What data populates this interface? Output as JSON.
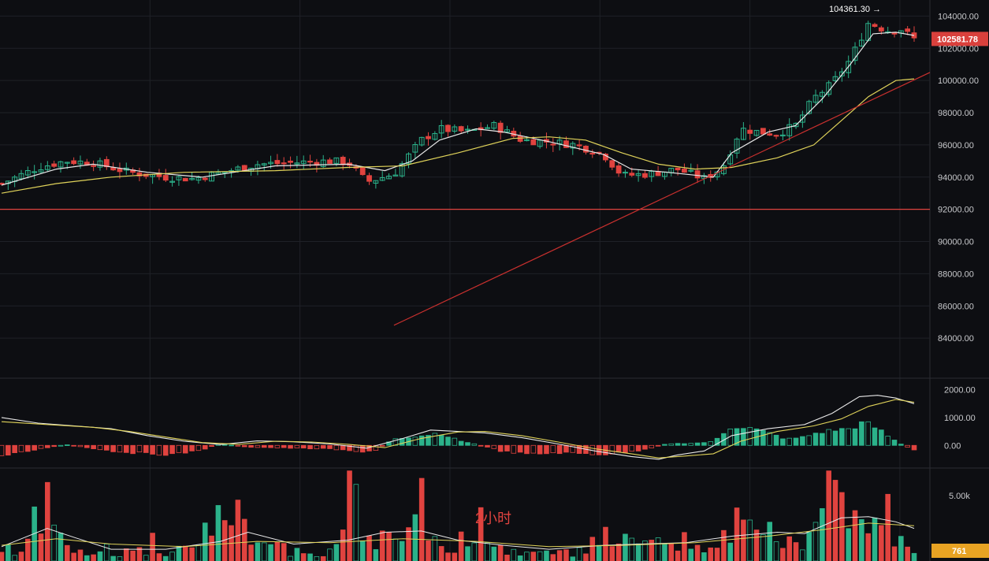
{
  "chart_data": [
    {
      "type": "candlestick",
      "panel": "price",
      "ylim": [
        82000,
        105000
      ],
      "y_ticks": [
        "104000.00",
        "102000.00",
        "100000.00",
        "98000.00",
        "96000.00",
        "94000.00",
        "92000.00",
        "90000.00",
        "88000.00",
        "86000.00",
        "84000.00"
      ],
      "high_annotation": "104361.30 →",
      "last_price_label": "102581.78",
      "horizontal_line_value": 92000,
      "trendline": {
        "from": [
          0.43,
          84800
        ],
        "to": [
          1.0,
          100500
        ]
      },
      "candle_count": 140,
      "close_path": [
        [
          0.0,
          93600
        ],
        [
          0.04,
          94600
        ],
        [
          0.07,
          95000
        ],
        [
          0.1,
          94900
        ],
        [
          0.14,
          94300
        ],
        [
          0.18,
          94000
        ],
        [
          0.21,
          93900
        ],
        [
          0.25,
          94400
        ],
        [
          0.28,
          94800
        ],
        [
          0.32,
          94900
        ],
        [
          0.36,
          95000
        ],
        [
          0.38,
          94900
        ],
        [
          0.4,
          93700
        ],
        [
          0.43,
          94200
        ],
        [
          0.46,
          96300
        ],
        [
          0.48,
          97000
        ],
        [
          0.51,
          96800
        ],
        [
          0.54,
          97200
        ],
        [
          0.57,
          96300
        ],
        [
          0.6,
          96200
        ],
        [
          0.63,
          96000
        ],
        [
          0.66,
          95400
        ],
        [
          0.68,
          94100
        ],
        [
          0.71,
          94200
        ],
        [
          0.74,
          94500
        ],
        [
          0.77,
          93900
        ],
        [
          0.79,
          94600
        ],
        [
          0.81,
          97000
        ],
        [
          0.83,
          96800
        ],
        [
          0.85,
          96700
        ],
        [
          0.87,
          97200
        ],
        [
          0.89,
          98900
        ],
        [
          0.91,
          99800
        ],
        [
          0.93,
          101300
        ],
        [
          0.95,
          103600
        ],
        [
          0.97,
          103100
        ],
        [
          0.985,
          103200
        ],
        [
          1.0,
          102580
        ]
      ],
      "series": [
        {
          "name": "",
          "color": "#e8e8e8",
          "path": [
            [
              0.0,
              93500
            ],
            [
              0.06,
              94500
            ],
            [
              0.1,
              94800
            ],
            [
              0.16,
              94300
            ],
            [
              0.22,
              94000
            ],
            [
              0.3,
              94700
            ],
            [
              0.38,
              94800
            ],
            [
              0.42,
              94400
            ],
            [
              0.45,
              95000
            ],
            [
              0.48,
              96300
            ],
            [
              0.52,
              97000
            ],
            [
              0.55,
              96800
            ],
            [
              0.6,
              96200
            ],
            [
              0.66,
              95400
            ],
            [
              0.69,
              94500
            ],
            [
              0.73,
              94300
            ],
            [
              0.78,
              94000
            ],
            [
              0.8,
              95500
            ],
            [
              0.84,
              96800
            ],
            [
              0.87,
              97200
            ],
            [
              0.9,
              98900
            ],
            [
              0.93,
              101000
            ],
            [
              0.955,
              102900
            ],
            [
              0.98,
              103000
            ],
            [
              1.0,
              102800
            ]
          ]
        },
        {
          "name": "",
          "color": "#e0d35a",
          "path": [
            [
              0.0,
              93000
            ],
            [
              0.06,
              93600
            ],
            [
              0.12,
              94000
            ],
            [
              0.2,
              94300
            ],
            [
              0.3,
              94400
            ],
            [
              0.38,
              94600
            ],
            [
              0.44,
              94700
            ],
            [
              0.5,
              95500
            ],
            [
              0.56,
              96400
            ],
            [
              0.6,
              96500
            ],
            [
              0.64,
              96300
            ],
            [
              0.68,
              95500
            ],
            [
              0.72,
              94800
            ],
            [
              0.76,
              94500
            ],
            [
              0.8,
              94600
            ],
            [
              0.85,
              95200
            ],
            [
              0.89,
              96000
            ],
            [
              0.92,
              97500
            ],
            [
              0.95,
              99000
            ],
            [
              0.98,
              100000
            ],
            [
              1.0,
              100100
            ]
          ]
        }
      ]
    },
    {
      "type": "macd",
      "panel": "macd",
      "ylim": [
        -700,
        2300
      ],
      "y_ticks": [
        "2000.00",
        "1000.00",
        "0.00"
      ],
      "histogram_path": [
        [
          0.0,
          -400
        ],
        [
          0.03,
          -200
        ],
        [
          0.05,
          -80
        ],
        [
          0.07,
          30
        ],
        [
          0.09,
          -60
        ],
        [
          0.12,
          -200
        ],
        [
          0.16,
          -300
        ],
        [
          0.19,
          -320
        ],
        [
          0.22,
          -150
        ],
        [
          0.24,
          60
        ],
        [
          0.27,
          -60
        ],
        [
          0.32,
          -100
        ],
        [
          0.36,
          -130
        ],
        [
          0.39,
          -230
        ],
        [
          0.41,
          -180
        ],
        [
          0.43,
          250
        ],
        [
          0.46,
          350
        ],
        [
          0.48,
          450
        ],
        [
          0.5,
          180
        ],
        [
          0.52,
          40
        ],
        [
          0.55,
          -220
        ],
        [
          0.58,
          -320
        ],
        [
          0.61,
          -260
        ],
        [
          0.64,
          -300
        ],
        [
          0.66,
          -320
        ],
        [
          0.69,
          -230
        ],
        [
          0.71,
          -100
        ],
        [
          0.73,
          60
        ],
        [
          0.76,
          80
        ],
        [
          0.78,
          130
        ],
        [
          0.8,
          700
        ],
        [
          0.82,
          620
        ],
        [
          0.84,
          450
        ],
        [
          0.86,
          220
        ],
        [
          0.88,
          300
        ],
        [
          0.89,
          420
        ],
        [
          0.91,
          540
        ],
        [
          0.93,
          600
        ],
        [
          0.945,
          820
        ],
        [
          0.96,
          600
        ],
        [
          0.975,
          250
        ],
        [
          0.985,
          60
        ],
        [
          1.0,
          -180
        ]
      ],
      "series": [
        {
          "name": "",
          "color": "#e8e8e8",
          "path": [
            [
              0.0,
              1000
            ],
            [
              0.04,
              800
            ],
            [
              0.08,
              700
            ],
            [
              0.12,
              600
            ],
            [
              0.16,
              350
            ],
            [
              0.2,
              150
            ],
            [
              0.24,
              30
            ],
            [
              0.28,
              160
            ],
            [
              0.32,
              130
            ],
            [
              0.36,
              50
            ],
            [
              0.4,
              -100
            ],
            [
              0.44,
              250
            ],
            [
              0.47,
              550
            ],
            [
              0.5,
              500
            ],
            [
              0.53,
              450
            ],
            [
              0.57,
              280
            ],
            [
              0.61,
              50
            ],
            [
              0.65,
              -200
            ],
            [
              0.69,
              -400
            ],
            [
              0.72,
              -500
            ],
            [
              0.74,
              -350
            ],
            [
              0.77,
              -200
            ],
            [
              0.8,
              350
            ],
            [
              0.84,
              600
            ],
            [
              0.88,
              750
            ],
            [
              0.91,
              1150
            ],
            [
              0.94,
              1750
            ],
            [
              0.96,
              1800
            ],
            [
              0.98,
              1700
            ],
            [
              1.0,
              1500
            ]
          ]
        },
        {
          "name": "",
          "color": "#e0d35a",
          "path": [
            [
              0.0,
              850
            ],
            [
              0.05,
              750
            ],
            [
              0.1,
              650
            ],
            [
              0.14,
              500
            ],
            [
              0.18,
              300
            ],
            [
              0.22,
              100
            ],
            [
              0.26,
              40
            ],
            [
              0.3,
              150
            ],
            [
              0.34,
              120
            ],
            [
              0.38,
              40
            ],
            [
              0.42,
              -80
            ],
            [
              0.46,
              250
            ],
            [
              0.5,
              480
            ],
            [
              0.53,
              500
            ],
            [
              0.57,
              350
            ],
            [
              0.61,
              120
            ],
            [
              0.65,
              -120
            ],
            [
              0.69,
              -300
            ],
            [
              0.72,
              -450
            ],
            [
              0.75,
              -380
            ],
            [
              0.78,
              -300
            ],
            [
              0.81,
              150
            ],
            [
              0.85,
              500
            ],
            [
              0.89,
              700
            ],
            [
              0.92,
              950
            ],
            [
              0.95,
              1400
            ],
            [
              0.98,
              1650
            ],
            [
              1.0,
              1550
            ]
          ]
        }
      ]
    },
    {
      "type": "volume",
      "panel": "volume",
      "ylim": [
        0,
        7000
      ],
      "y_ticks": [
        "5.00k"
      ],
      "last_volume_label": "761",
      "volume_path": [
        [
          0.0,
          800
        ],
        [
          0.03,
          1500
        ],
        [
          0.05,
          6300
        ],
        [
          0.07,
          1200
        ],
        [
          0.1,
          600
        ],
        [
          0.14,
          900
        ],
        [
          0.18,
          700
        ],
        [
          0.22,
          1200
        ],
        [
          0.25,
          4900
        ],
        [
          0.28,
          1200
        ],
        [
          0.32,
          1000
        ],
        [
          0.36,
          900
        ],
        [
          0.39,
          4700
        ],
        [
          0.41,
          2400
        ],
        [
          0.44,
          1100
        ],
        [
          0.46,
          5200
        ],
        [
          0.48,
          900
        ],
        [
          0.52,
          2300
        ],
        [
          0.55,
          800
        ],
        [
          0.58,
          600
        ],
        [
          0.62,
          700
        ],
        [
          0.67,
          2200
        ],
        [
          0.7,
          1100
        ],
        [
          0.75,
          1800
        ],
        [
          0.78,
          900
        ],
        [
          0.8,
          3200
        ],
        [
          0.84,
          2400
        ],
        [
          0.87,
          1400
        ],
        [
          0.89,
          2500
        ],
        [
          0.91,
          6800
        ],
        [
          0.93,
          3500
        ],
        [
          0.95,
          2200
        ],
        [
          0.965,
          5200
        ],
        [
          0.98,
          2800
        ],
        [
          1.0,
          761
        ]
      ],
      "series": [
        {
          "name": "",
          "color": "#e8e8e8",
          "path": [
            [
              0.0,
              1100
            ],
            [
              0.05,
              2500
            ],
            [
              0.08,
              1800
            ],
            [
              0.12,
              900
            ],
            [
              0.18,
              900
            ],
            [
              0.24,
              1500
            ],
            [
              0.27,
              2200
            ],
            [
              0.32,
              1300
            ],
            [
              0.38,
              1600
            ],
            [
              0.42,
              2200
            ],
            [
              0.46,
              2300
            ],
            [
              0.5,
              1600
            ],
            [
              0.55,
              1200
            ],
            [
              0.6,
              900
            ],
            [
              0.66,
              1200
            ],
            [
              0.7,
              1300
            ],
            [
              0.75,
              1400
            ],
            [
              0.8,
              1900
            ],
            [
              0.85,
              2200
            ],
            [
              0.88,
              2100
            ],
            [
              0.92,
              3300
            ],
            [
              0.95,
              3400
            ],
            [
              0.98,
              3000
            ],
            [
              1.0,
              2500
            ]
          ]
        },
        {
          "name": "",
          "color": "#e0d35a",
          "path": [
            [
              0.0,
              1200
            ],
            [
              0.06,
              1700
            ],
            [
              0.12,
              1300
            ],
            [
              0.2,
              1100
            ],
            [
              0.28,
              1500
            ],
            [
              0.36,
              1400
            ],
            [
              0.44,
              1700
            ],
            [
              0.52,
              1500
            ],
            [
              0.6,
              1100
            ],
            [
              0.68,
              1200
            ],
            [
              0.76,
              1400
            ],
            [
              0.84,
              1900
            ],
            [
              0.9,
              2400
            ],
            [
              0.95,
              2900
            ],
            [
              1.0,
              2700
            ]
          ]
        }
      ]
    }
  ],
  "colors": {
    "up": "#2bb28a",
    "down": "#e0433f",
    "grid": "#1f2127",
    "ma_fast": "#e8e8e8",
    "ma_slow": "#e0d35a",
    "price_tag": "#d9403c",
    "volume_tag": "#e8a323",
    "support_line": "#e0433f",
    "trend_line": "#c8302e"
  },
  "interval_label": "2小时"
}
